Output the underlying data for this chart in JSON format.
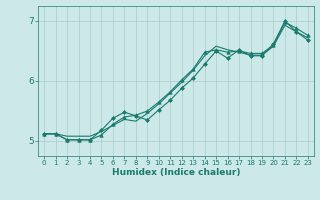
{
  "xlabel": "Humidex (Indice chaleur)",
  "xlim": [
    -0.5,
    23.5
  ],
  "ylim": [
    4.75,
    7.25
  ],
  "yticks": [
    5,
    6,
    7
  ],
  "xticks": [
    0,
    1,
    2,
    3,
    4,
    5,
    6,
    7,
    8,
    9,
    10,
    11,
    12,
    13,
    14,
    15,
    16,
    17,
    18,
    19,
    20,
    21,
    22,
    23
  ],
  "bg_color": "#cce8e8",
  "line_color": "#1a7a6e",
  "grid_color": "#aacccc",
  "lines": [
    {
      "x": [
        0,
        1,
        2,
        3,
        4,
        5,
        6,
        7,
        8,
        9,
        10,
        11,
        12,
        13,
        14,
        15,
        16,
        17,
        18,
        19,
        20,
        21,
        22,
        23
      ],
      "y": [
        5.12,
        5.12,
        5.02,
        5.02,
        5.02,
        5.18,
        5.38,
        5.48,
        5.42,
        5.35,
        5.52,
        5.68,
        5.88,
        6.05,
        6.28,
        6.5,
        6.38,
        6.52,
        6.42,
        6.42,
        6.62,
        7.0,
        6.82,
        6.68
      ],
      "marker": "D",
      "markersize": 2.0
    },
    {
      "x": [
        0,
        1,
        2,
        3,
        4,
        5,
        6,
        7,
        8,
        9,
        10,
        11,
        12,
        13,
        14,
        15,
        16,
        17,
        18,
        19,
        20,
        21,
        22,
        23
      ],
      "y": [
        5.12,
        5.12,
        5.08,
        5.08,
        5.08,
        5.16,
        5.26,
        5.36,
        5.33,
        5.46,
        5.62,
        5.8,
        5.98,
        6.18,
        6.42,
        6.58,
        6.52,
        6.48,
        6.43,
        6.43,
        6.58,
        6.93,
        6.82,
        6.72
      ],
      "marker": null,
      "markersize": 0
    },
    {
      "x": [
        0,
        1,
        2,
        3,
        4,
        5,
        6,
        7,
        8,
        9,
        10,
        11,
        12,
        13,
        14,
        15,
        16,
        17,
        18,
        19,
        20,
        21,
        22,
        23
      ],
      "y": [
        5.12,
        5.12,
        5.02,
        5.02,
        5.02,
        5.1,
        5.28,
        5.4,
        5.43,
        5.5,
        5.65,
        5.82,
        6.02,
        6.2,
        6.48,
        6.52,
        6.48,
        6.5,
        6.46,
        6.46,
        6.6,
        6.98,
        6.88,
        6.76
      ],
      "marker": "^",
      "markersize": 3.0
    }
  ]
}
